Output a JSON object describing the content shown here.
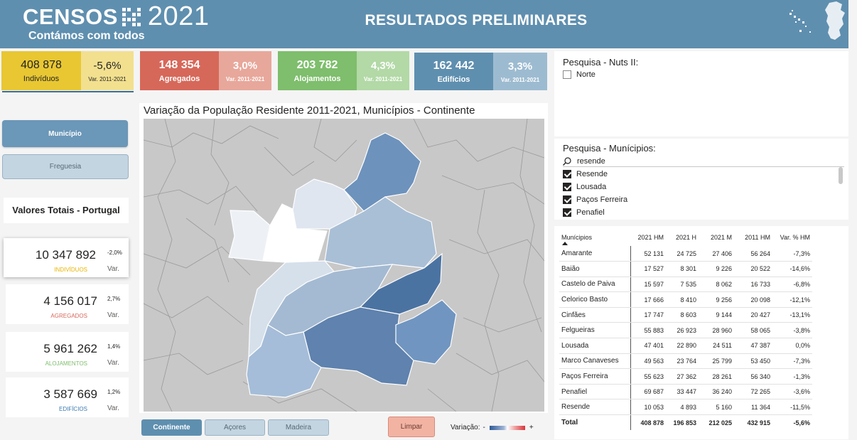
{
  "header": {
    "logo_text": "CENSOS",
    "logo_year": "2021",
    "logo_subtitle": "Contámos com todos",
    "title": "RESULTADOS PRELIMINARES"
  },
  "kpis": [
    {
      "value": "408 878",
      "label": "Indivíduos",
      "var": "-5,6%",
      "var_label": "Var. 2011-2021"
    },
    {
      "value": "148 354",
      "label": "Agregados",
      "var": "3,0%",
      "var_label": "Var. 2011-2021"
    },
    {
      "value": "203 782",
      "label": "Alojamentos",
      "var": "4,3%",
      "var_label": "Var. 2011-2021"
    },
    {
      "value": "162 442",
      "label": "Edifícios",
      "var": "3,3%",
      "var_label": "Var. 2011-2021"
    }
  ],
  "left": {
    "btn_municipio": "Município",
    "btn_freguesia": "Freguesia",
    "totals_title": "Valores Totais - Portugal",
    "totals": [
      {
        "value": "10 347 892",
        "pct": "-2,0%",
        "label": "INDIVÍDUOS",
        "var": "Var.",
        "color": "#e8b400"
      },
      {
        "value": "4 156 017",
        "pct": "2,7%",
        "label": "AGREGADOS",
        "var": "Var.",
        "color": "#d6685a"
      },
      {
        "value": "5 961 262",
        "pct": "1,4%",
        "label": "ALOJAMENTOS",
        "var": "Var.",
        "color": "#7ebe6c"
      },
      {
        "value": "3 587 669",
        "pct": "1,2%",
        "label": "EDIFÍCIOS",
        "var": "Var.",
        "color": "#3a7ab3"
      }
    ]
  },
  "map": {
    "title": "Variação da População Residente 2011-2021, Municípios - Continente",
    "btn_continente": "Continente",
    "btn_acores": "Açores",
    "btn_madeira": "Madeira",
    "btn_limpar": "Limpar",
    "legend_label": "Variação:",
    "legend_minus": "-",
    "legend_plus": "+"
  },
  "slicer_nuts": {
    "title": "Pesquisa - Nuts II:",
    "items": [
      {
        "label": "Norte",
        "checked": false
      }
    ]
  },
  "slicer_municipios": {
    "title": "Pesquisa - Munícipios:",
    "search_value": "resende",
    "items": [
      {
        "label": "Resende",
        "checked": true
      },
      {
        "label": "Lousada",
        "checked": true
      },
      {
        "label": "Paços Ferreira",
        "checked": true
      },
      {
        "label": "Penafiel",
        "checked": true
      }
    ]
  },
  "table": {
    "headers": [
      "Munícipios",
      "2021 HM",
      "2021 H",
      "2021 M",
      "2011 HM",
      "Var. % HM"
    ],
    "rows": [
      [
        "Amarante",
        "52 131",
        "24 725",
        "27 406",
        "56 264",
        "-7,3%"
      ],
      [
        "Baião",
        "17 527",
        "8 301",
        "9 226",
        "20 522",
        "-14,6%"
      ],
      [
        "Castelo de Paiva",
        "15 597",
        "7 535",
        "8 062",
        "16 733",
        "-6,8%"
      ],
      [
        "Celorico Basto",
        "17 666",
        "8 410",
        "9 256",
        "20 098",
        "-12,1%"
      ],
      [
        "Cinfães",
        "17 747",
        "8 603",
        "9 144",
        "20 427",
        "-13,1%"
      ],
      [
        "Felgueiras",
        "55 883",
        "26 923",
        "28 960",
        "58 065",
        "-3,8%"
      ],
      [
        "Lousada",
        "47 401",
        "22 890",
        "24 511",
        "47 387",
        "0,0%"
      ],
      [
        "Marco Canaveses",
        "49 563",
        "23 764",
        "25 799",
        "53 450",
        "-7,3%"
      ],
      [
        "Paços Ferreira",
        "55 623",
        "27 362",
        "28 261",
        "56 340",
        "-1,3%"
      ],
      [
        "Penafiel",
        "69 687",
        "33 447",
        "36 240",
        "72 265",
        "-3,6%"
      ],
      [
        "Resende",
        "10 053",
        "4 893",
        "5 160",
        "11 364",
        "-11,5%"
      ]
    ],
    "total": [
      "Total",
      "408 878",
      "196 853",
      "212 025",
      "432 915",
      "-5,6%"
    ]
  }
}
